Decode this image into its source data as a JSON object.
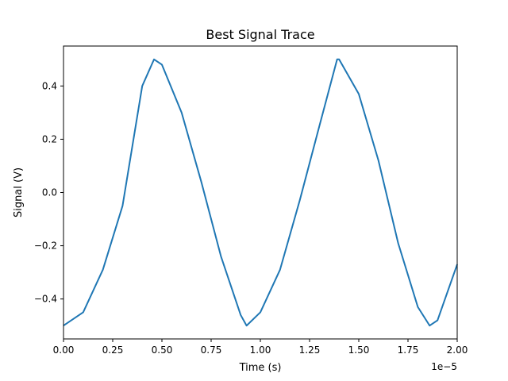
{
  "chart_data": {
    "type": "line",
    "title": "Best Signal Trace",
    "xlabel": "Time (s)",
    "ylabel": "Signal (V)",
    "x_offset_label": "1e−5",
    "xlim": [
      0,
      2e-05
    ],
    "ylim": [
      -0.55,
      0.55
    ],
    "x_ticks": [
      {
        "value": 0.0,
        "label": "0.00"
      },
      {
        "value": 2.5e-06,
        "label": "0.25"
      },
      {
        "value": 5e-06,
        "label": "0.50"
      },
      {
        "value": 7.5e-06,
        "label": "0.75"
      },
      {
        "value": 1e-05,
        "label": "1.00"
      },
      {
        "value": 1.25e-05,
        "label": "1.25"
      },
      {
        "value": 1.5e-05,
        "label": "1.50"
      },
      {
        "value": 1.75e-05,
        "label": "1.75"
      },
      {
        "value": 2e-05,
        "label": "2.00"
      }
    ],
    "y_ticks": [
      {
        "value": -0.4,
        "label": "−0.4"
      },
      {
        "value": -0.2,
        "label": "−0.2"
      },
      {
        "value": 0.0,
        "label": "0.0"
      },
      {
        "value": 0.2,
        "label": "0.2"
      },
      {
        "value": 0.4,
        "label": "0.4"
      }
    ],
    "grid": false,
    "series": [
      {
        "color": "#1f77b4",
        "x": [
          0.0,
          1e-06,
          2e-06,
          3e-06,
          4e-06,
          4.6e-06,
          5e-06,
          6e-06,
          7e-06,
          8e-06,
          9e-06,
          9.3e-06,
          1e-05,
          1.1e-05,
          1.2e-05,
          1.3e-05,
          1.39e-05,
          1.4e-05,
          1.5e-05,
          1.6e-05,
          1.7e-05,
          1.8e-05,
          1.86e-05,
          1.9e-05,
          2e-05
        ],
        "y": [
          -0.5,
          -0.45,
          -0.29,
          -0.05,
          0.4,
          0.5,
          0.48,
          0.3,
          0.04,
          -0.24,
          -0.46,
          -0.5,
          -0.45,
          -0.29,
          -0.03,
          0.25,
          0.5,
          0.5,
          0.37,
          0.12,
          -0.19,
          -0.43,
          -0.5,
          -0.48,
          -0.27
        ]
      }
    ]
  }
}
